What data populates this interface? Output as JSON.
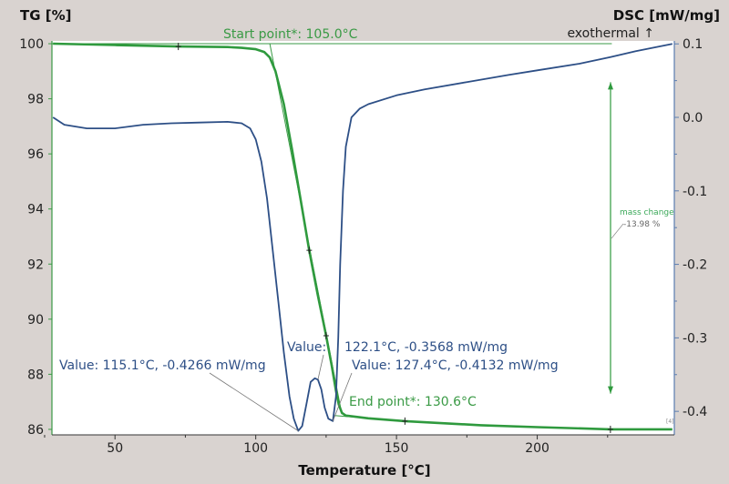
{
  "chart_data": {
    "type": "line",
    "title": "",
    "xlabel": "Temperature [°C]",
    "ylabel_left": "TG [%]",
    "ylabel_right": "DSC [mW/mg]",
    "right_axis_note": "exothermal ↑",
    "xlim": [
      27.6,
      248.7
    ],
    "ylim_left": [
      85.8,
      100.1
    ],
    "ylim_right": [
      -0.432,
      0.104
    ],
    "x_ticks": [
      50,
      100,
      150,
      200
    ],
    "y_ticks_left": [
      86,
      88,
      90,
      92,
      94,
      96,
      98,
      100
    ],
    "y_ticks_right": [
      -0.4,
      -0.3,
      -0.2,
      -0.1,
      0.0,
      0.1
    ],
    "y_tick_labels_right": [
      "-0.4",
      "-0.3",
      "-0.2",
      "-0.1",
      "0.0",
      "0.1"
    ],
    "grid": false,
    "series": [
      {
        "name": "TG",
        "axis": "left",
        "color": "#2f9a3e",
        "x": [
          28,
          50,
          72.5,
          90,
          95,
          100,
          103,
          105,
          107,
          110,
          113,
          116,
          119,
          122,
          125,
          127,
          128.5,
          129.5,
          130.6,
          132,
          140,
          153,
          180,
          200,
          226,
          248
        ],
        "y": [
          100.0,
          99.95,
          99.9,
          99.88,
          99.85,
          99.8,
          99.7,
          99.5,
          99.0,
          97.8,
          96.1,
          94.3,
          92.5,
          90.9,
          89.4,
          88.3,
          87.4,
          86.9,
          86.6,
          86.5,
          86.4,
          86.3,
          86.15,
          86.08,
          86.0,
          86.0
        ]
      },
      {
        "name": "DSC",
        "axis": "right",
        "color": "#2d4f86",
        "x": [
          28,
          32,
          40,
          50,
          60,
          70,
          80,
          90,
          95,
          98,
          100,
          102,
          104,
          106,
          108,
          110,
          112,
          113.5,
          115.1,
          116.5,
          118,
          119.5,
          121,
          122.1,
          123.3,
          124.5,
          125.8,
          127.4,
          128.5,
          129.3,
          130,
          131,
          132,
          134,
          137,
          140,
          150,
          160,
          175,
          190,
          200,
          215,
          226,
          235,
          248
        ],
        "y": [
          0.0,
          -0.01,
          -0.015,
          -0.015,
          -0.01,
          -0.008,
          -0.007,
          -0.006,
          -0.008,
          -0.015,
          -0.03,
          -0.06,
          -0.11,
          -0.18,
          -0.25,
          -0.32,
          -0.38,
          -0.41,
          -0.4266,
          -0.42,
          -0.39,
          -0.36,
          -0.355,
          -0.3568,
          -0.37,
          -0.395,
          -0.41,
          -0.4132,
          -0.38,
          -0.3,
          -0.2,
          -0.1,
          -0.04,
          0.0,
          0.012,
          0.018,
          0.03,
          0.038,
          0.048,
          0.058,
          0.064,
          0.073,
          0.082,
          0.09,
          0.1
        ]
      }
    ],
    "annotations": {
      "start_point": "Start point*: 105.0°C",
      "end_point": "End point*: 130.6°C",
      "peak1": "Value: 115.1°C, -0.4266 mW/mg",
      "peak2_label": "Value:",
      "peak2_value": "122.1°C, -0.3568 mW/mg",
      "peak3": "Value: 127.4°C, -0.4132 mW/mg",
      "mass_change_label": "mass change",
      "mass_change_value": "-13.98 %",
      "curve_tag": "[4]"
    },
    "markers": {
      "start_point_T": 105.0,
      "end_point_T": 130.6,
      "peak1": [
        115.1,
        -0.4266
      ],
      "peak2": [
        122.1,
        -0.3568
      ],
      "peak3": [
        127.4,
        -0.4132
      ],
      "mass_change_from": 98.6,
      "mass_change_to": 87.3,
      "tg_ticks": [
        [
          72.5,
          99.9
        ],
        [
          119,
          92.5
        ],
        [
          125,
          89.4
        ],
        [
          153,
          86.3
        ],
        [
          226,
          86.0
        ]
      ]
    }
  }
}
